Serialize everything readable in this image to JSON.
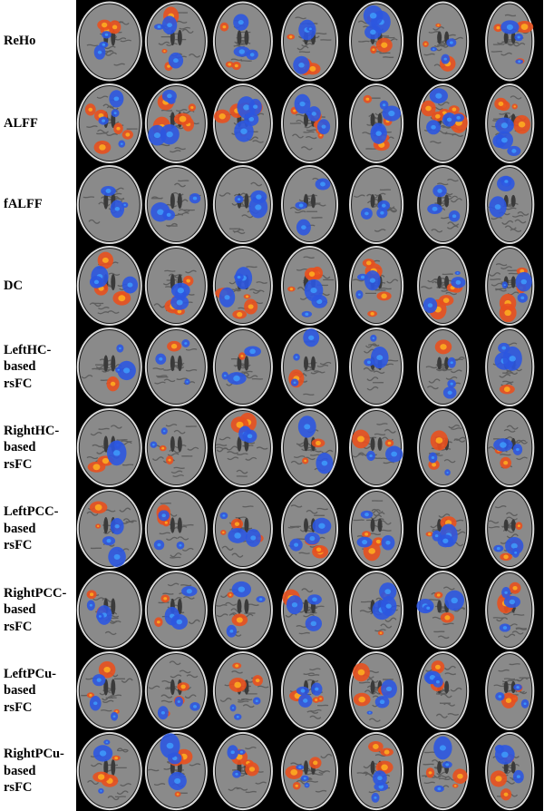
{
  "figure": {
    "rows": [
      {
        "label": "ReHo"
      },
      {
        "label": "ALFF"
      },
      {
        "label": "fALFF"
      },
      {
        "label": "DC"
      },
      {
        "label": "LeftHC-\nbased\nrsFC"
      },
      {
        "label": "RightHC-\nbased\nrsFC"
      },
      {
        "label": "LeftPCC-\nbased\nrsFC"
      },
      {
        "label": "RightPCC-\nbased\nrsFC"
      },
      {
        "label": "LeftPCu-\nbased\nrsFC"
      },
      {
        "label": "RightPCu-\nbased\nrsFC"
      }
    ],
    "colors": {
      "background": "#000000",
      "positive": "#e8501e",
      "positive_hot": "#ffb020",
      "negative": "#2c56e0",
      "negative_light": "#3fa0ff",
      "brain_gray": "#8a8a8a"
    }
  }
}
